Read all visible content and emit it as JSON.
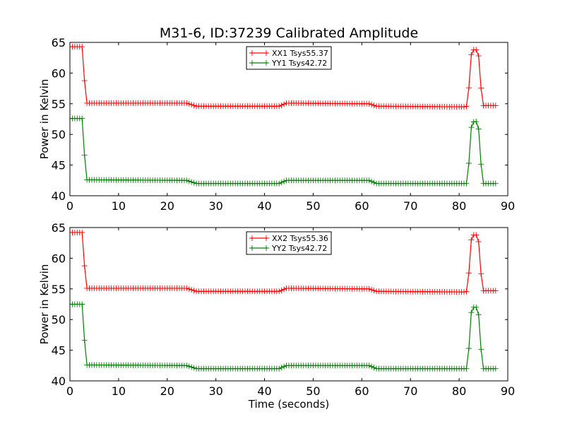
{
  "chart_data": [
    {
      "type": "line",
      "title": "M31-6, ID:37239 Calibrated Amplitude",
      "xlabel": "",
      "ylabel": "Power in Kelvin",
      "xlim": [
        0,
        90
      ],
      "ylim": [
        40,
        65
      ],
      "xticks": [
        "0",
        "10",
        "20",
        "30",
        "40",
        "50",
        "60",
        "70",
        "80",
        "90"
      ],
      "yticks": [
        "40",
        "45",
        "50",
        "55",
        "60",
        "65"
      ],
      "grid": false,
      "legend_position": "top-center",
      "series": [
        {
          "name": "XX1 Tsys55.37",
          "color": "#ff0000",
          "marker": "plus",
          "values": [
            [
              0.0,
              64.3
            ],
            [
              2.6,
              64.3
            ],
            [
              2.9,
              60.6
            ],
            [
              3.2,
              55.1
            ],
            [
              24.0,
              55.1
            ],
            [
              26.0,
              54.6
            ],
            [
              43.0,
              54.6
            ],
            [
              44.5,
              55.1
            ],
            [
              61.5,
              55.0
            ],
            [
              63.0,
              54.6
            ],
            [
              81.0,
              54.5
            ],
            [
              81.8,
              54.6
            ],
            [
              82.2,
              60.6
            ],
            [
              82.6,
              63.8
            ],
            [
              83.6,
              63.8
            ],
            [
              84.0,
              62.8
            ],
            [
              84.4,
              58.5
            ],
            [
              84.8,
              54.7
            ],
            [
              87.5,
              54.7
            ]
          ]
        },
        {
          "name": "YY1 Tsys42.72",
          "color": "#008000",
          "marker": "plus",
          "values": [
            [
              0.0,
              52.6
            ],
            [
              2.6,
              52.6
            ],
            [
              2.9,
              48.6
            ],
            [
              3.2,
              42.6
            ],
            [
              24.0,
              42.5
            ],
            [
              26.0,
              42.0
            ],
            [
              43.0,
              42.0
            ],
            [
              44.5,
              42.5
            ],
            [
              61.5,
              42.5
            ],
            [
              63.0,
              42.0
            ],
            [
              81.0,
              42.0
            ],
            [
              81.8,
              42.0
            ],
            [
              82.2,
              48.6
            ],
            [
              82.6,
              52.0
            ],
            [
              83.6,
              52.1
            ],
            [
              84.0,
              50.9
            ],
            [
              84.4,
              46.2
            ],
            [
              84.8,
              42.0
            ],
            [
              87.5,
              42.0
            ]
          ]
        }
      ]
    },
    {
      "type": "line",
      "title": "",
      "xlabel": "Time (seconds)",
      "ylabel": "Power in Kelvin",
      "xlim": [
        0,
        90
      ],
      "ylim": [
        40,
        65
      ],
      "xticks": [
        "0",
        "10",
        "20",
        "30",
        "40",
        "50",
        "60",
        "70",
        "80",
        "90"
      ],
      "yticks": [
        "40",
        "45",
        "50",
        "55",
        "60",
        "65"
      ],
      "grid": false,
      "legend_position": "top-center",
      "series": [
        {
          "name": "XX2 Tsys55.36",
          "color": "#ff0000",
          "marker": "plus",
          "values": [
            [
              0.0,
              64.2
            ],
            [
              2.6,
              64.2
            ],
            [
              2.9,
              60.6
            ],
            [
              3.2,
              55.1
            ],
            [
              24.0,
              55.1
            ],
            [
              26.0,
              54.6
            ],
            [
              43.0,
              54.6
            ],
            [
              44.5,
              55.1
            ],
            [
              61.5,
              55.0
            ],
            [
              63.0,
              54.6
            ],
            [
              81.0,
              54.5
            ],
            [
              81.8,
              54.6
            ],
            [
              82.2,
              60.6
            ],
            [
              82.6,
              63.8
            ],
            [
              83.6,
              63.8
            ],
            [
              84.0,
              62.7
            ],
            [
              84.4,
              58.4
            ],
            [
              84.8,
              54.7
            ],
            [
              87.5,
              54.7
            ]
          ]
        },
        {
          "name": "YY2 Tsys42.72",
          "color": "#008000",
          "marker": "plus",
          "values": [
            [
              0.0,
              52.5
            ],
            [
              2.6,
              52.5
            ],
            [
              2.9,
              48.6
            ],
            [
              3.2,
              42.6
            ],
            [
              24.0,
              42.5
            ],
            [
              26.0,
              42.0
            ],
            [
              43.0,
              42.0
            ],
            [
              44.5,
              42.5
            ],
            [
              61.5,
              42.5
            ],
            [
              63.0,
              42.0
            ],
            [
              81.0,
              42.0
            ],
            [
              81.8,
              42.0
            ],
            [
              82.2,
              48.6
            ],
            [
              82.6,
              52.0
            ],
            [
              83.6,
              52.0
            ],
            [
              84.0,
              50.8
            ],
            [
              84.4,
              46.2
            ],
            [
              84.8,
              42.0
            ],
            [
              87.5,
              42.0
            ]
          ]
        }
      ]
    }
  ]
}
